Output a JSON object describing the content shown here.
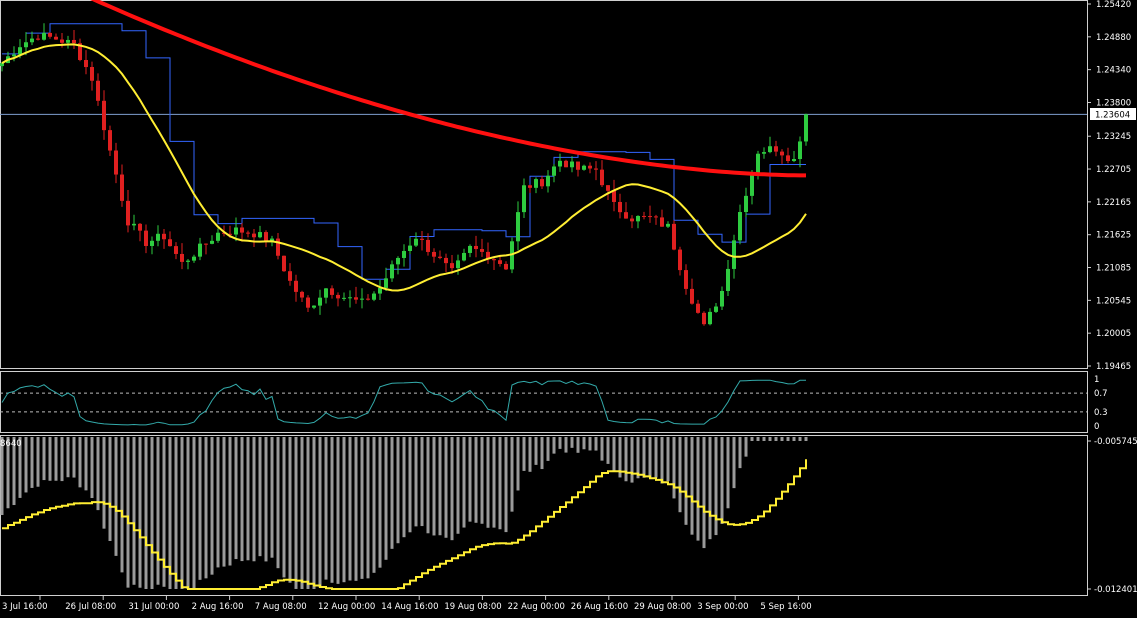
{
  "chart_data": {
    "type": "candlestick",
    "price_panel": {
      "y_ticks": [
        "1.25420",
        "1.24880",
        "1.24340",
        "1.23800",
        "1.23245",
        "1.22705",
        "1.22165",
        "1.21625",
        "1.21085",
        "1.20545",
        "1.20005",
        "1.19465"
      ],
      "ylim": [
        1.19465,
        1.2542
      ],
      "current_price": 1.23604,
      "current_price_label": "1.23604",
      "colors": {
        "bull": "#2ecc40",
        "bear": "#e02020",
        "ma_slow": "#ff1010",
        "ma_mid": "#ffee33",
        "trail": "#3366ff",
        "price_line": "#7f9fd0"
      },
      "anchors": [
        {
          "i": 0,
          "p": 1.2445
        },
        {
          "i": 3,
          "p": 1.2475
        },
        {
          "i": 6,
          "p": 1.249
        },
        {
          "i": 9,
          "p": 1.2485
        },
        {
          "i": 12,
          "p": 1.2475
        },
        {
          "i": 15,
          "p": 1.242
        },
        {
          "i": 18,
          "p": 1.23
        },
        {
          "i": 21,
          "p": 1.2185
        },
        {
          "i": 24,
          "p": 1.215
        },
        {
          "i": 27,
          "p": 1.216
        },
        {
          "i": 30,
          "p": 1.2115
        },
        {
          "i": 33,
          "p": 1.214
        },
        {
          "i": 36,
          "p": 1.2165
        },
        {
          "i": 39,
          "p": 1.217
        },
        {
          "i": 42,
          "p": 1.2165
        },
        {
          "i": 45,
          "p": 1.215
        },
        {
          "i": 48,
          "p": 1.2085
        },
        {
          "i": 51,
          "p": 1.204
        },
        {
          "i": 54,
          "p": 1.2075
        },
        {
          "i": 57,
          "p": 1.206
        },
        {
          "i": 60,
          "p": 1.205
        },
        {
          "i": 63,
          "p": 1.2075
        },
        {
          "i": 66,
          "p": 1.2125
        },
        {
          "i": 69,
          "p": 1.216
        },
        {
          "i": 72,
          "p": 1.213
        },
        {
          "i": 75,
          "p": 1.21
        },
        {
          "i": 78,
          "p": 1.214
        },
        {
          "i": 81,
          "p": 1.213
        },
        {
          "i": 84,
          "p": 1.211
        },
        {
          "i": 87,
          "p": 1.224
        },
        {
          "i": 90,
          "p": 1.225
        },
        {
          "i": 93,
          "p": 1.2285
        },
        {
          "i": 96,
          "p": 1.227
        },
        {
          "i": 99,
          "p": 1.227
        },
        {
          "i": 102,
          "p": 1.221
        },
        {
          "i": 105,
          "p": 1.219
        },
        {
          "i": 108,
          "p": 1.219
        },
        {
          "i": 111,
          "p": 1.2175
        },
        {
          "i": 114,
          "p": 1.208
        },
        {
          "i": 117,
          "p": 1.201
        },
        {
          "i": 120,
          "p": 1.207
        },
        {
          "i": 123,
          "p": 1.22
        },
        {
          "i": 126,
          "p": 1.23
        },
        {
          "i": 129,
          "p": 1.2305
        },
        {
          "i": 132,
          "p": 1.2285
        },
        {
          "i": 134,
          "p": 1.236
        }
      ]
    },
    "oscillator_panel": {
      "y_ticks": [
        "1",
        "0.7",
        "0.3",
        "0"
      ],
      "ylim": [
        0,
        1
      ],
      "levels": [
        0.3,
        0.7
      ],
      "line_color": "#33aaaa"
    },
    "histogram_panel": {
      "y_ticks": [
        "-0.005745",
        "-0.012401"
      ],
      "ylim": [
        -0.012401,
        -0.005745
      ],
      "left_label": "8640",
      "bar_color": "#9a9a9a",
      "signal_color": "#ffee33"
    },
    "x_ticks": [
      "3 Jul 16:00",
      "26 Jul 08:00",
      "31 Jul 00:00",
      "2 Aug 16:00",
      "7 Aug 08:00",
      "12 Aug 00:00",
      "14 Aug 16:00",
      "19 Aug 08:00",
      "22 Aug 00:00",
      "26 Aug 16:00",
      "29 Aug 08:00",
      "3 Sep 00:00",
      "5 Sep 16:00"
    ]
  }
}
